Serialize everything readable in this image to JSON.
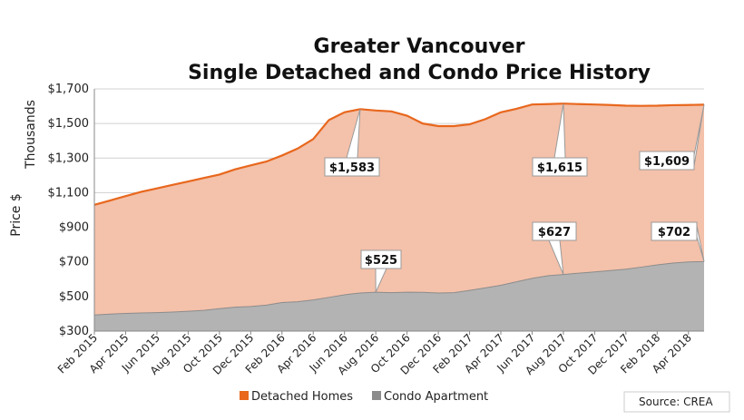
{
  "chart_data": {
    "type": "area",
    "title": "Greater Vancouver",
    "subtitle": "Single Detached and Condo Price History",
    "ylabel_line1": "Thousands",
    "ylabel_line2": "Price $",
    "ylim": [
      300,
      1700
    ],
    "yticks": [
      300,
      500,
      700,
      900,
      1100,
      1300,
      1500,
      1700
    ],
    "ytick_labels": [
      "$300",
      "$500",
      "$700",
      "$900",
      "$1,100",
      "$1,300",
      "$1,500",
      "$1,700"
    ],
    "x": [
      "2015-02",
      "2015-03",
      "2015-04",
      "2015-05",
      "2015-06",
      "2015-07",
      "2015-08",
      "2015-09",
      "2015-10",
      "2015-11",
      "2015-12",
      "2016-01",
      "2016-02",
      "2016-03",
      "2016-04",
      "2016-05",
      "2016-06",
      "2016-07",
      "2016-08",
      "2016-09",
      "2016-10",
      "2016-11",
      "2016-12",
      "2017-01",
      "2017-02",
      "2017-03",
      "2017-04",
      "2017-05",
      "2017-06",
      "2017-07",
      "2017-08",
      "2017-09",
      "2017-10",
      "2017-11",
      "2017-12",
      "2018-01",
      "2018-02",
      "2018-03",
      "2018-04",
      "2018-05"
    ],
    "xtick_labels": [
      "Feb 2015",
      "Apr 2015",
      "Jun 2015",
      "Aug 2015",
      "Oct 2015",
      "Dec 2015",
      "Feb 2016",
      "Apr 2016",
      "Jun 2016",
      "Aug 2016",
      "Oct 2016",
      "Dec 2016",
      "Feb 2017",
      "Apr 2017",
      "Jun 2017",
      "Aug 2017",
      "Oct 2017",
      "Dec 2017",
      "Feb 2018",
      "Apr 2018"
    ],
    "series": [
      {
        "name": "Detached Homes",
        "color": "#f4c1aa",
        "line_color": "#e8671d",
        "values": [
          1030,
          1055,
          1080,
          1105,
          1125,
          1145,
          1165,
          1185,
          1205,
          1235,
          1258,
          1280,
          1315,
          1355,
          1410,
          1520,
          1565,
          1583,
          1575,
          1570,
          1545,
          1500,
          1485,
          1485,
          1495,
          1525,
          1565,
          1585,
          1610,
          1612,
          1615,
          1612,
          1610,
          1607,
          1603,
          1602,
          1603,
          1606,
          1607,
          1609
        ]
      },
      {
        "name": "Condo Apartment",
        "color": "#b3b3b3",
        "line_color": "#8c8c8c",
        "values": [
          393,
          398,
          402,
          405,
          407,
          410,
          415,
          420,
          430,
          438,
          442,
          450,
          465,
          470,
          480,
          495,
          510,
          520,
          525,
          522,
          525,
          524,
          520,
          522,
          535,
          550,
          565,
          585,
          605,
          620,
          627,
          635,
          642,
          650,
          658,
          670,
          683,
          693,
          700,
          702
        ]
      }
    ],
    "callouts": [
      {
        "label": "$1,583",
        "x_index": 17,
        "value": 1583
      },
      {
        "label": "$1,615",
        "x_index": 30,
        "value": 1615
      },
      {
        "label": "$1,609",
        "x_index": 39,
        "value": 1609
      },
      {
        "label": "$525",
        "x_index": 18,
        "value": 525
      },
      {
        "label": "$627",
        "x_index": 30,
        "value": 627
      },
      {
        "label": "$702",
        "x_index": 39,
        "value": 702
      }
    ],
    "grid": true,
    "legend_placement": "bottom"
  },
  "source": "Source: CREA"
}
